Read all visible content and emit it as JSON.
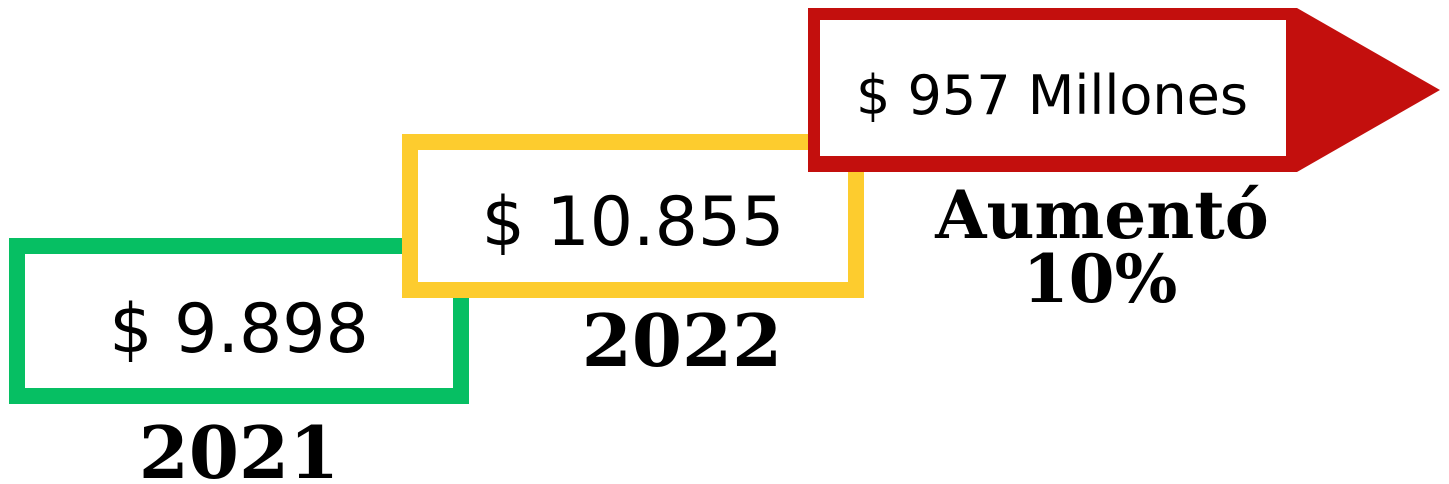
{
  "boxes": [
    {
      "value": "$ 9.898",
      "year": "2021"
    },
    {
      "value": "$ 10.855",
      "year": "2022"
    }
  ],
  "increase": {
    "value": "$ 957 Millones",
    "label": "Aumentó",
    "percent": "10%"
  }
}
